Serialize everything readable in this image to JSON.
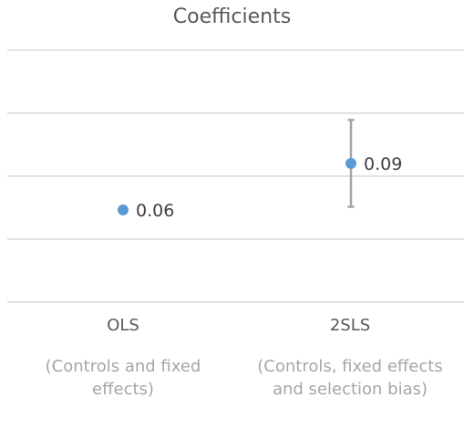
{
  "chart_data": {
    "type": "scatter",
    "title": "Coefficients",
    "categories": [
      "OLS",
      "2SLS"
    ],
    "category_notes": [
      "(Controls and fixed effects)",
      "(Controls, fixed effects and selection bias)"
    ],
    "series": [
      {
        "values": [
          0.06,
          0.09
        ],
        "data_labels": [
          "0.06",
          "0.09"
        ],
        "error_low": [
          null,
          0.062
        ],
        "error_high": [
          null,
          0.118
        ]
      }
    ],
    "grid": true,
    "legend": "none",
    "colors": {
      "point": "#5b9bd5",
      "error_bar": "#a6a6a6",
      "grid": "#d9d9d9",
      "label": "#404040"
    }
  }
}
